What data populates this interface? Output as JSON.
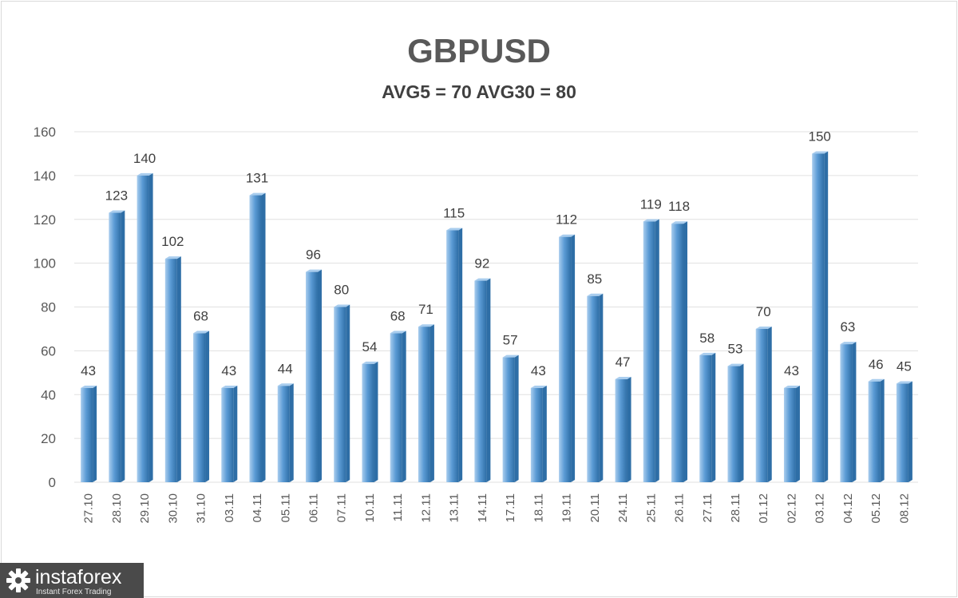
{
  "title": "GBPUSD",
  "subtitle": "AVG5 = 70 AVG30 = 80",
  "watermark": {
    "brand": "instaforex",
    "tagline": "Instant Forex Trading",
    "icon": "gear-icon"
  },
  "colors": {
    "bar_fill": "#5b9bd5",
    "bar_dark": "#2e6ea6",
    "bar_light": "#a9cdee",
    "grid": "#e0e0e0",
    "text": "#595959"
  },
  "chart_data": {
    "type": "bar",
    "title": "GBPUSD",
    "subtitle": "AVG5 = 70 AVG30 = 80",
    "categories": [
      "27.10",
      "28.10",
      "29.10",
      "30.10",
      "31.10",
      "03.11",
      "04.11",
      "05.11",
      "06.11",
      "07.11",
      "10.11",
      "11.11",
      "12.11",
      "13.11",
      "14.11",
      "17.11",
      "18.11",
      "19.11",
      "20.11",
      "24.11",
      "25.11",
      "26.11",
      "27.11",
      "28.11",
      "01.12",
      "02.12",
      "03.12",
      "04.12",
      "05.12",
      "08.12"
    ],
    "values": [
      43,
      123,
      140,
      102,
      68,
      43,
      131,
      44,
      96,
      80,
      54,
      68,
      71,
      115,
      92,
      57,
      43,
      112,
      85,
      47,
      119,
      118,
      58,
      53,
      70,
      43,
      150,
      63,
      46,
      45
    ],
    "ylim": [
      0,
      160
    ],
    "yticks": [
      0,
      20,
      40,
      60,
      80,
      100,
      120,
      140,
      160
    ],
    "grid": true,
    "legend": "none",
    "data_labels": true
  }
}
